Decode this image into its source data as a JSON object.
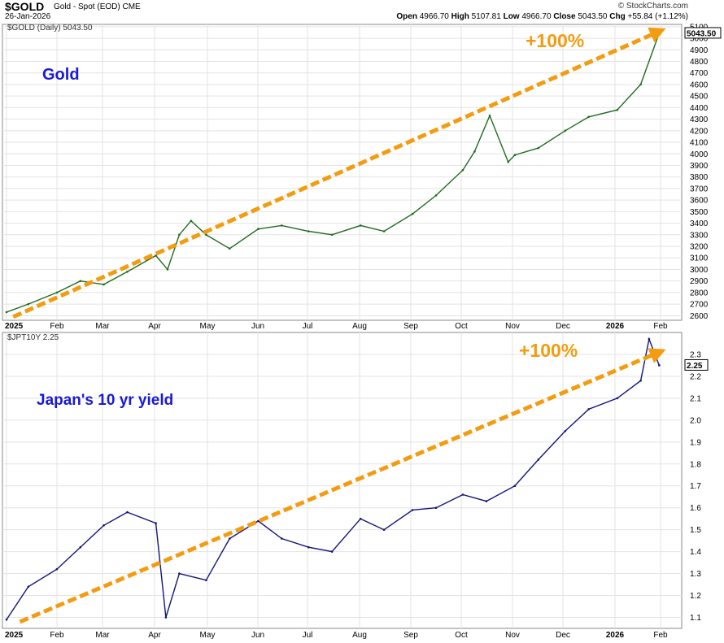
{
  "header": {
    "symbol": "$GOLD",
    "description": "Gold - Spot (EOD) CME",
    "date": "26-Jan-2026",
    "watermark": "© StockCharts.com",
    "open_label": "Open",
    "open": "4966.70",
    "high_label": "High",
    "high": "5107.81",
    "low_label": "Low",
    "low": "4966.70",
    "close_label": "Close",
    "close": "5043.50",
    "chg_label": "Chg",
    "chg": "+55.84 (+1.12%)"
  },
  "colors": {
    "gold": "#1e6b1e",
    "jgb": "#14147a",
    "arrow": "#f39c12",
    "title": "#1a1ad6",
    "grid": "#e3e3e3"
  },
  "chart_data": [
    {
      "type": "line",
      "legend": "$GOLD (Daily) 5043.50",
      "label": "Gold",
      "annotation": "+100%",
      "last_value": "5043.50",
      "ylim": [
        2560,
        5120
      ],
      "y_ticks": [
        2600,
        2700,
        2800,
        2900,
        3000,
        3100,
        3200,
        3300,
        3400,
        3500,
        3600,
        3700,
        3800,
        3900,
        4000,
        4100,
        4200,
        4300,
        4400,
        4500,
        4600,
        4700,
        4800,
        4900,
        5000,
        5100
      ],
      "x_ticks": [
        "2025",
        "Feb",
        "Mar",
        "Apr",
        "May",
        "Jun",
        "Jul",
        "Aug",
        "Sep",
        "Oct",
        "Nov",
        "Dec",
        "2026",
        "Feb"
      ],
      "trend_arrow": {
        "from": [
          "2025-01-06",
          2590
        ],
        "to": [
          "2026-01-26",
          5060
        ]
      },
      "x": [
        "2025-01-02",
        "2025-01-15",
        "2025-02-01",
        "2025-02-15",
        "2025-03-01",
        "2025-03-15",
        "2025-04-01",
        "2025-04-08",
        "2025-04-15",
        "2025-04-22",
        "2025-05-01",
        "2025-05-15",
        "2025-06-01",
        "2025-06-15",
        "2025-07-01",
        "2025-07-15",
        "2025-08-01",
        "2025-08-15",
        "2025-09-01",
        "2025-09-15",
        "2025-10-01",
        "2025-10-08",
        "2025-10-17",
        "2025-10-28",
        "2025-11-01",
        "2025-11-15",
        "2025-12-01",
        "2025-12-15",
        "2026-01-01",
        "2026-01-15",
        "2026-01-26"
      ],
      "values": [
        2630,
        2700,
        2800,
        2900,
        2870,
        2980,
        3120,
        3000,
        3300,
        3420,
        3300,
        3180,
        3350,
        3380,
        3330,
        3300,
        3380,
        3330,
        3480,
        3640,
        3860,
        4020,
        4330,
        3930,
        3990,
        4050,
        4200,
        4320,
        4380,
        4600,
        5043
      ]
    },
    {
      "type": "line",
      "legend": "$JPT10Y 2.25",
      "label": "Japan's 10 yr yield",
      "annotation": "+100%",
      "last_value": "2.25",
      "ylim": [
        1.05,
        2.4
      ],
      "y_ticks": [
        1.1,
        1.2,
        1.3,
        1.4,
        1.5,
        1.6,
        1.7,
        1.8,
        1.9,
        2.0,
        2.1,
        2.2,
        2.3
      ],
      "x_ticks": [
        "2025",
        "Feb",
        "Mar",
        "Apr",
        "May",
        "Jun",
        "Jul",
        "Aug",
        "Sep",
        "Oct",
        "Nov",
        "Dec",
        "2026",
        "Feb"
      ],
      "trend_arrow": {
        "from": [
          "2025-01-10",
          1.08
        ],
        "to": [
          "2026-01-26",
          2.31
        ]
      },
      "x": [
        "2025-01-02",
        "2025-01-15",
        "2025-02-01",
        "2025-02-15",
        "2025-03-01",
        "2025-03-15",
        "2025-04-01",
        "2025-04-07",
        "2025-04-15",
        "2025-05-01",
        "2025-05-15",
        "2025-06-01",
        "2025-06-15",
        "2025-07-01",
        "2025-07-15",
        "2025-08-01",
        "2025-08-15",
        "2025-09-01",
        "2025-09-15",
        "2025-10-01",
        "2025-10-15",
        "2025-11-01",
        "2025-11-15",
        "2025-12-01",
        "2025-12-15",
        "2026-01-01",
        "2026-01-15",
        "2026-01-20",
        "2026-01-26"
      ],
      "values": [
        1.09,
        1.24,
        1.32,
        1.42,
        1.52,
        1.58,
        1.53,
        1.1,
        1.3,
        1.27,
        1.46,
        1.54,
        1.46,
        1.42,
        1.4,
        1.55,
        1.5,
        1.59,
        1.6,
        1.66,
        1.63,
        1.7,
        1.82,
        1.95,
        2.05,
        2.1,
        2.18,
        2.37,
        2.25
      ]
    }
  ]
}
